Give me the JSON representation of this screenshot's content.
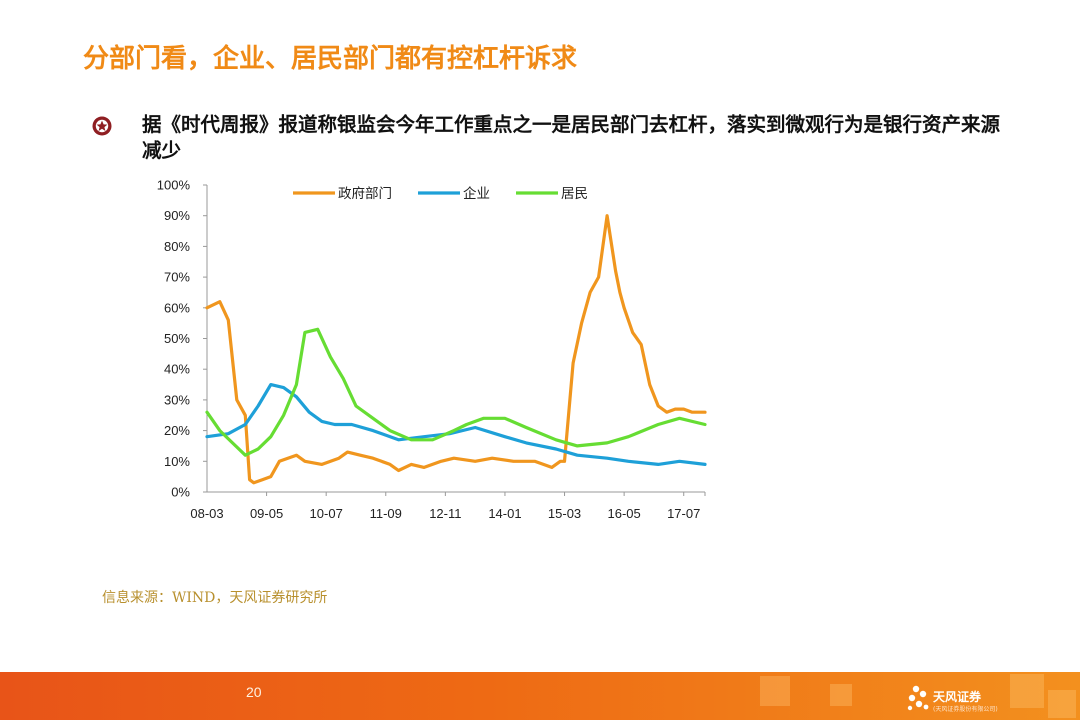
{
  "title": "分部门看，企业、居民部门都有控杠杆诉求",
  "bullet": "据《时代周报》报道称银监会今年工作重点之一是居民部门去杠杆，落实到微观行为是银行资产来源减少",
  "source": "信息来源：WIND，天风证券研究所",
  "page_number": "20",
  "logo": {
    "name": "天风证券",
    "tagline": "(天风证券股份有限公司)",
    "icon": "tianfeng-logo-icon"
  },
  "colors": {
    "title": "#f08a16",
    "government": "#f0961e",
    "enterprise": "#1ea0d8",
    "household": "#66dd33",
    "footer": "#ee6a14"
  },
  "chart_data": {
    "type": "line",
    "x_tick_labels": [
      "08-03",
      "09-05",
      "10-07",
      "11-09",
      "12-11",
      "14-01",
      "15-03",
      "16-05",
      "17-07"
    ],
    "x_start": "2008-03",
    "x_end": "2017-12",
    "y_tick_labels": [
      "0%",
      "10%",
      "20%",
      "30%",
      "40%",
      "50%",
      "60%",
      "70%",
      "80%",
      "90%",
      "100%"
    ],
    "ylim": [
      0,
      100
    ],
    "legend_position": "top",
    "series": [
      {
        "name": "政府部门",
        "color": "#f0961e",
        "x": [
          "2008-03",
          "2008-06",
          "2008-08",
          "2008-10",
          "2008-12",
          "2009-01",
          "2009-02",
          "2009-04",
          "2009-06",
          "2009-08",
          "2009-10",
          "2009-12",
          "2010-02",
          "2010-06",
          "2010-10",
          "2010-12",
          "2011-03",
          "2011-06",
          "2011-10",
          "2011-12",
          "2012-03",
          "2012-06",
          "2012-10",
          "2013-01",
          "2013-06",
          "2013-10",
          "2014-03",
          "2014-08",
          "2014-12",
          "2015-02",
          "2015-03",
          "2015-05",
          "2015-07",
          "2015-09",
          "2015-11",
          "2016-01",
          "2016-03",
          "2016-04",
          "2016-05",
          "2016-07",
          "2016-09",
          "2016-11",
          "2017-01",
          "2017-03",
          "2017-05",
          "2017-07",
          "2017-09",
          "2017-12"
        ],
        "values": [
          60,
          62,
          56,
          30,
          25,
          4,
          3,
          4,
          5,
          10,
          11,
          12,
          10,
          9,
          11,
          13,
          12,
          11,
          9,
          7,
          9,
          8,
          10,
          11,
          10,
          11,
          10,
          10,
          8,
          10,
          10,
          42,
          55,
          65,
          70,
          90,
          72,
          65,
          60,
          52,
          48,
          35,
          28,
          26,
          27,
          27,
          26,
          26
        ]
      },
      {
        "name": "企业",
        "color": "#1ea0d8",
        "x": [
          "2008-03",
          "2008-08",
          "2008-12",
          "2009-03",
          "2009-06",
          "2009-09",
          "2009-12",
          "2010-03",
          "2010-06",
          "2010-09",
          "2011-01",
          "2011-06",
          "2011-12",
          "2012-06",
          "2012-12",
          "2013-06",
          "2014-01",
          "2014-06",
          "2015-01",
          "2015-06",
          "2016-01",
          "2016-06",
          "2017-01",
          "2017-06",
          "2017-12"
        ],
        "values": [
          18,
          19,
          22,
          28,
          35,
          34,
          31,
          26,
          23,
          22,
          22,
          20,
          17,
          18,
          19,
          21,
          18,
          16,
          14,
          12,
          11,
          10,
          9,
          10,
          9
        ]
      },
      {
        "name": "居民",
        "color": "#66dd33",
        "x": [
          "2008-03",
          "2008-06",
          "2008-09",
          "2008-12",
          "2009-03",
          "2009-06",
          "2009-09",
          "2009-12",
          "2010-02",
          "2010-05",
          "2010-08",
          "2010-11",
          "2011-02",
          "2011-06",
          "2011-10",
          "2012-03",
          "2012-08",
          "2013-01",
          "2013-04",
          "2013-08",
          "2014-01",
          "2014-06",
          "2015-01",
          "2015-06",
          "2016-01",
          "2016-06",
          "2017-01",
          "2017-06",
          "2017-12"
        ],
        "values": [
          26,
          20,
          16,
          12,
          14,
          18,
          25,
          35,
          52,
          53,
          44,
          37,
          28,
          24,
          20,
          17,
          17,
          20,
          22,
          24,
          24,
          21,
          17,
          15,
          16,
          18,
          22,
          24,
          22
        ]
      }
    ]
  }
}
